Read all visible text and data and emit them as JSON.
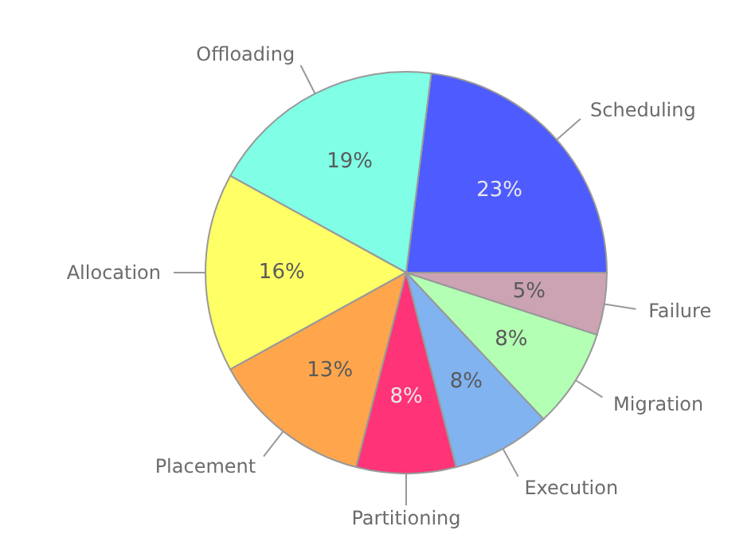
{
  "chart_data": {
    "type": "pie",
    "categories": [
      "Scheduling",
      "Offloading",
      "Allocation",
      "Placement",
      "Partitioning",
      "Execution",
      "Migration",
      "Failure"
    ],
    "values": [
      23,
      19,
      16,
      13,
      8,
      8,
      8,
      5
    ],
    "value_labels": [
      "23%",
      "19%",
      "16%",
      "13%",
      "8%",
      "8%",
      "8%",
      "5%"
    ],
    "colors": [
      "#4d5bff",
      "#80ffe6",
      "#ffff66",
      "#ffa64d",
      "#ff3377",
      "#80b3f0",
      "#b3ffb3",
      "#cca3b3"
    ],
    "legend": false
  }
}
